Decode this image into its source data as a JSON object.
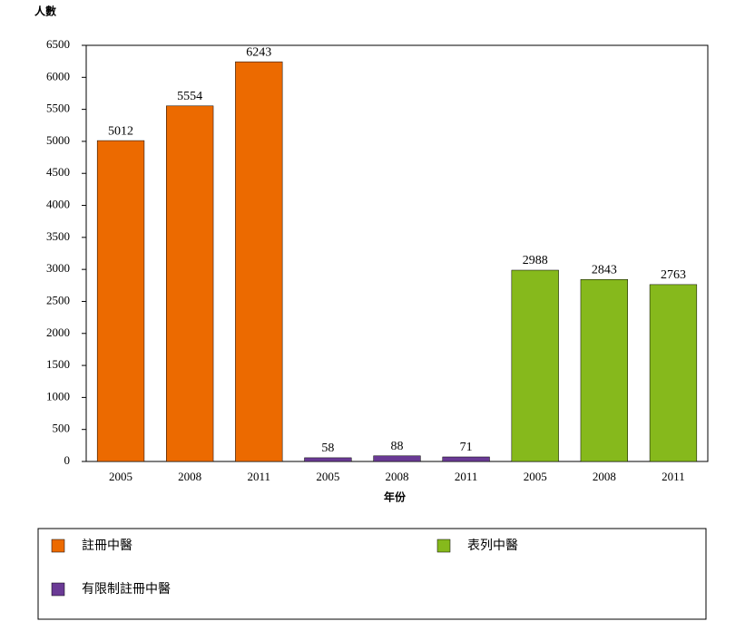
{
  "chart_data": {
    "type": "bar",
    "y_axis_label": "人數",
    "x_axis_label": "年份",
    "categories": [
      "2005",
      "2008",
      "2011",
      "2005",
      "2008",
      "2011",
      "2005",
      "2008",
      "2011"
    ],
    "series": [
      {
        "name": "註冊中醫",
        "color": "#ec6a00",
        "values": [
          5012,
          5554,
          6243,
          null,
          null,
          null,
          null,
          null,
          null
        ]
      },
      {
        "name": "有限制註冊中醫",
        "color": "#6a3a95",
        "values": [
          null,
          null,
          null,
          58,
          88,
          71,
          null,
          null,
          null
        ]
      },
      {
        "name": "表列中醫",
        "color": "#86b91c",
        "values": [
          null,
          null,
          null,
          null,
          null,
          null,
          2988,
          2843,
          2763
        ]
      }
    ],
    "ylim": [
      0,
      6500
    ],
    "yticks": [
      0,
      500,
      1000,
      1500,
      2000,
      2500,
      3000,
      3500,
      4000,
      4500,
      5000,
      5500,
      6000,
      6500
    ]
  }
}
